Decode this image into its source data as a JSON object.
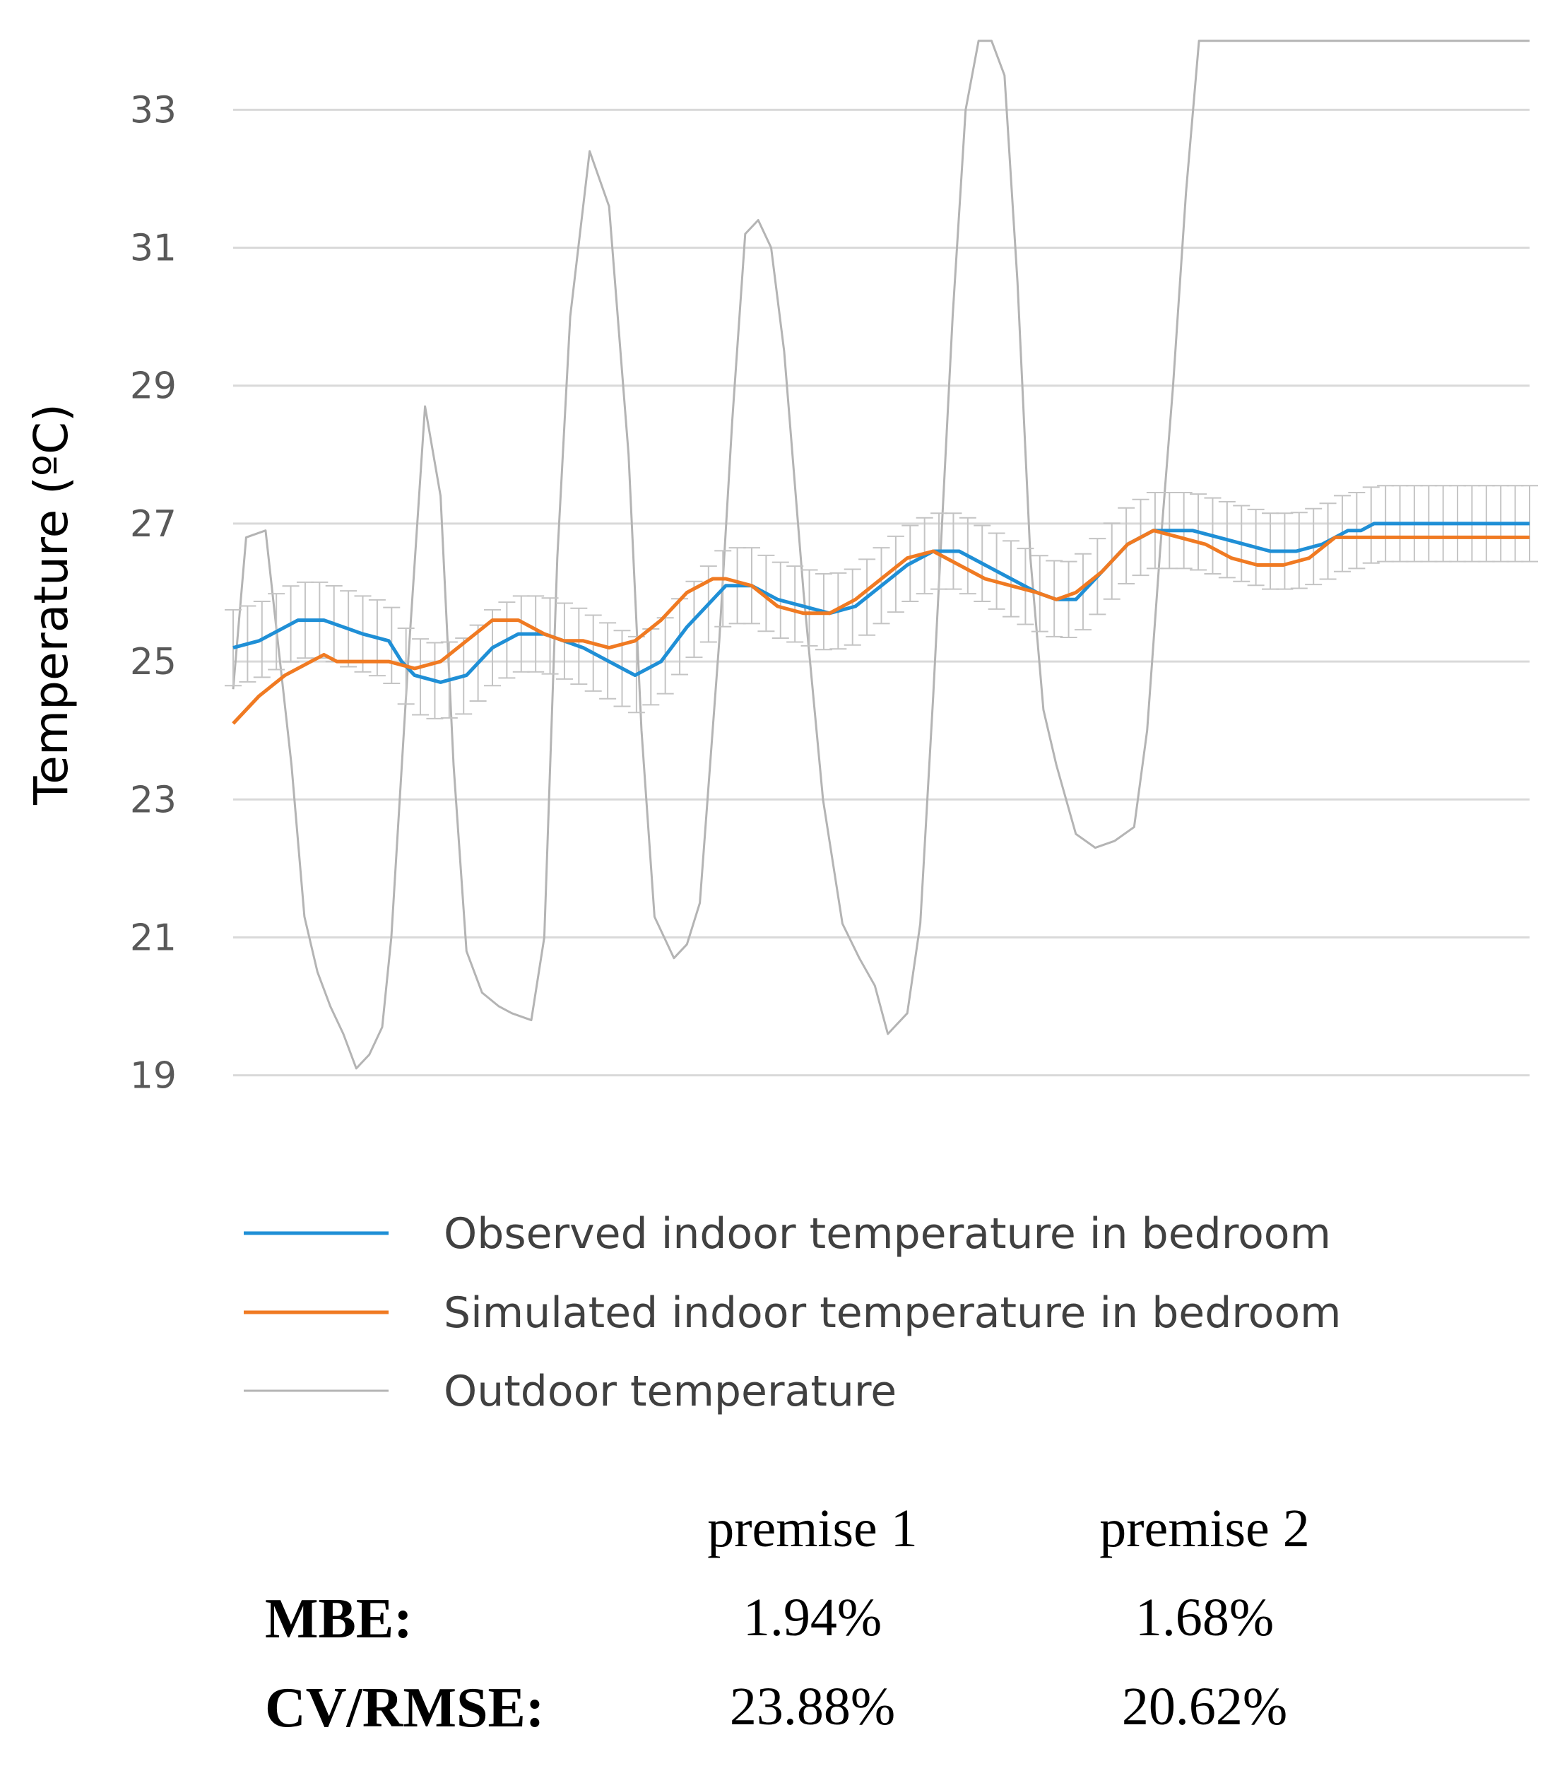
{
  "chart_data": {
    "type": "line",
    "ylabel": "Temperature (ºC)",
    "xlabel": "",
    "ylim": [
      18.3,
      34.1
    ],
    "yticks": [
      "19",
      "21",
      "23",
      "25",
      "27",
      "29",
      "31",
      "33"
    ],
    "grid": "horizontal",
    "legend_position": "bottom",
    "x_range": [
      0,
      100
    ],
    "series": [
      {
        "name": "Observed indoor temperature in bedroom",
        "color": "#1f8fd6",
        "error_bar_half_width": 0.55,
        "x": [
          0,
          2,
          3,
          5,
          7,
          8.5,
          10,
          12,
          13,
          14,
          16,
          18,
          19,
          20,
          22,
          24,
          25.5,
          27,
          29,
          31,
          33,
          35,
          37,
          38,
          40,
          42,
          44,
          46,
          48,
          50,
          52,
          54,
          56,
          58,
          60,
          62,
          63.5,
          65,
          67,
          69,
          71,
          73,
          74,
          76,
          78,
          80,
          82,
          84,
          85,
          86,
          87,
          88,
          90,
          92,
          94,
          96,
          98,
          99,
          100
        ],
        "values": [
          25.2,
          25.3,
          25.4,
          25.6,
          25.6,
          25.5,
          25.4,
          25.3,
          25.0,
          24.8,
          24.7,
          24.8,
          25.0,
          25.2,
          25.4,
          25.4,
          25.3,
          25.2,
          25.0,
          24.8,
          25.0,
          25.5,
          25.9,
          26.1,
          26.1,
          25.9,
          25.8,
          25.7,
          25.8,
          26.1,
          26.4,
          26.6,
          26.6,
          26.4,
          26.2,
          26.0,
          25.9,
          25.9,
          26.3,
          26.7,
          26.9,
          26.9,
          26.9,
          26.8,
          26.7,
          26.6,
          26.6,
          26.7,
          26.8,
          26.9,
          26.9,
          27.0,
          27.0,
          27.0,
          27.0,
          27.0,
          27.0,
          27.0,
          27.0
        ]
      },
      {
        "name": "Simulated indoor temperature in bedroom",
        "color": "#f07a22",
        "x": [
          0,
          2,
          4,
          6,
          7,
          8,
          10,
          12,
          14,
          16,
          18,
          20,
          22,
          24,
          25.5,
          27,
          29,
          31,
          33,
          35,
          37,
          38,
          40,
          42,
          44,
          46,
          48,
          50,
          52,
          54,
          56,
          58,
          60,
          62,
          63.5,
          65,
          67,
          69,
          71,
          73,
          75,
          77,
          79,
          81,
          83,
          85,
          87,
          89,
          91,
          93,
          95,
          97,
          99,
          100
        ],
        "values": [
          24.1,
          24.5,
          24.8,
          25.0,
          25.1,
          25.0,
          25.0,
          25.0,
          24.9,
          25.0,
          25.3,
          25.6,
          25.6,
          25.4,
          25.3,
          25.3,
          25.2,
          25.3,
          25.6,
          26.0,
          26.2,
          26.2,
          26.1,
          25.8,
          25.7,
          25.7,
          25.9,
          26.2,
          26.5,
          26.6,
          26.4,
          26.2,
          26.1,
          26.0,
          25.9,
          26.0,
          26.3,
          26.7,
          26.9,
          26.8,
          26.7,
          26.5,
          26.4,
          26.4,
          26.5,
          26.8,
          26.8,
          26.8,
          26.8,
          26.8,
          26.8,
          26.8,
          26.8,
          26.8
        ]
      },
      {
        "name": "Outdoor temperature",
        "color": "#b4b4b4",
        "x": [
          0,
          1,
          2.5,
          3.5,
          4.5,
          5.5,
          6.5,
          7.5,
          8.5,
          9.5,
          10.5,
          11.5,
          12.2,
          13.5,
          14.8,
          16,
          17,
          18,
          19.2,
          20.5,
          21.5,
          23,
          24,
          25,
          26,
          27.5,
          29,
          30.5,
          31.5,
          32.5,
          34,
          35,
          36,
          37.5,
          38.5,
          39.5,
          40.5,
          41.5,
          42.5,
          44,
          45.5,
          47,
          48.3,
          49.5,
          50.5,
          52,
          53,
          54,
          55.5,
          56.5,
          57.5,
          58.5,
          59.5,
          60.5,
          61.5,
          62.5,
          63.5,
          65,
          66.5,
          68,
          69.5,
          70.5,
          71.5,
          72.5,
          73.5,
          74.5,
          75.5,
          76.5,
          77.5,
          79,
          80.5,
          82,
          83.5,
          85,
          86.3,
          87,
          88,
          89,
          90,
          91,
          92,
          93,
          94,
          95,
          96,
          97,
          98,
          99,
          100
        ],
        "values": [
          24.6,
          26.8,
          26.9,
          25.2,
          23.5,
          21.3,
          20.5,
          20.0,
          19.6,
          19.1,
          19.3,
          19.7,
          21.0,
          25.0,
          28.7,
          27.4,
          23.5,
          20.8,
          20.2,
          20.0,
          19.9,
          19.8,
          21.0,
          26.5,
          30.0,
          32.4,
          31.6,
          28.0,
          24.0,
          21.3,
          20.7,
          20.9,
          21.5,
          25.3,
          28.5,
          31.2,
          31.4,
          31.0,
          29.5,
          26.0,
          23.0,
          21.2,
          20.7,
          20.3,
          19.6,
          19.9,
          21.2,
          24.5,
          30.0,
          33.0,
          34.0,
          34.0,
          33.5,
          30.5,
          26.5,
          24.3,
          23.5,
          22.5,
          22.3,
          22.4,
          22.6,
          24.0,
          26.6,
          29.0,
          31.8,
          34.0,
          34.0,
          34.0,
          34.0,
          34.0,
          34.0,
          34.0,
          34.0,
          34.0,
          34.0,
          34.0,
          34.0,
          34.0,
          34.0,
          34.0,
          34.0,
          34.0,
          34.0,
          34.0,
          34.0,
          34.0,
          34.0,
          34.0,
          34.0
        ]
      }
    ]
  },
  "stats": {
    "columns": [
      "premise 1",
      "premise 2"
    ],
    "rows": [
      {
        "label": "MBE:",
        "values": [
          "1.94%",
          "1.68%"
        ]
      },
      {
        "label": "CV/RMSE:",
        "values": [
          "23.88%",
          "20.62%"
        ]
      }
    ]
  }
}
